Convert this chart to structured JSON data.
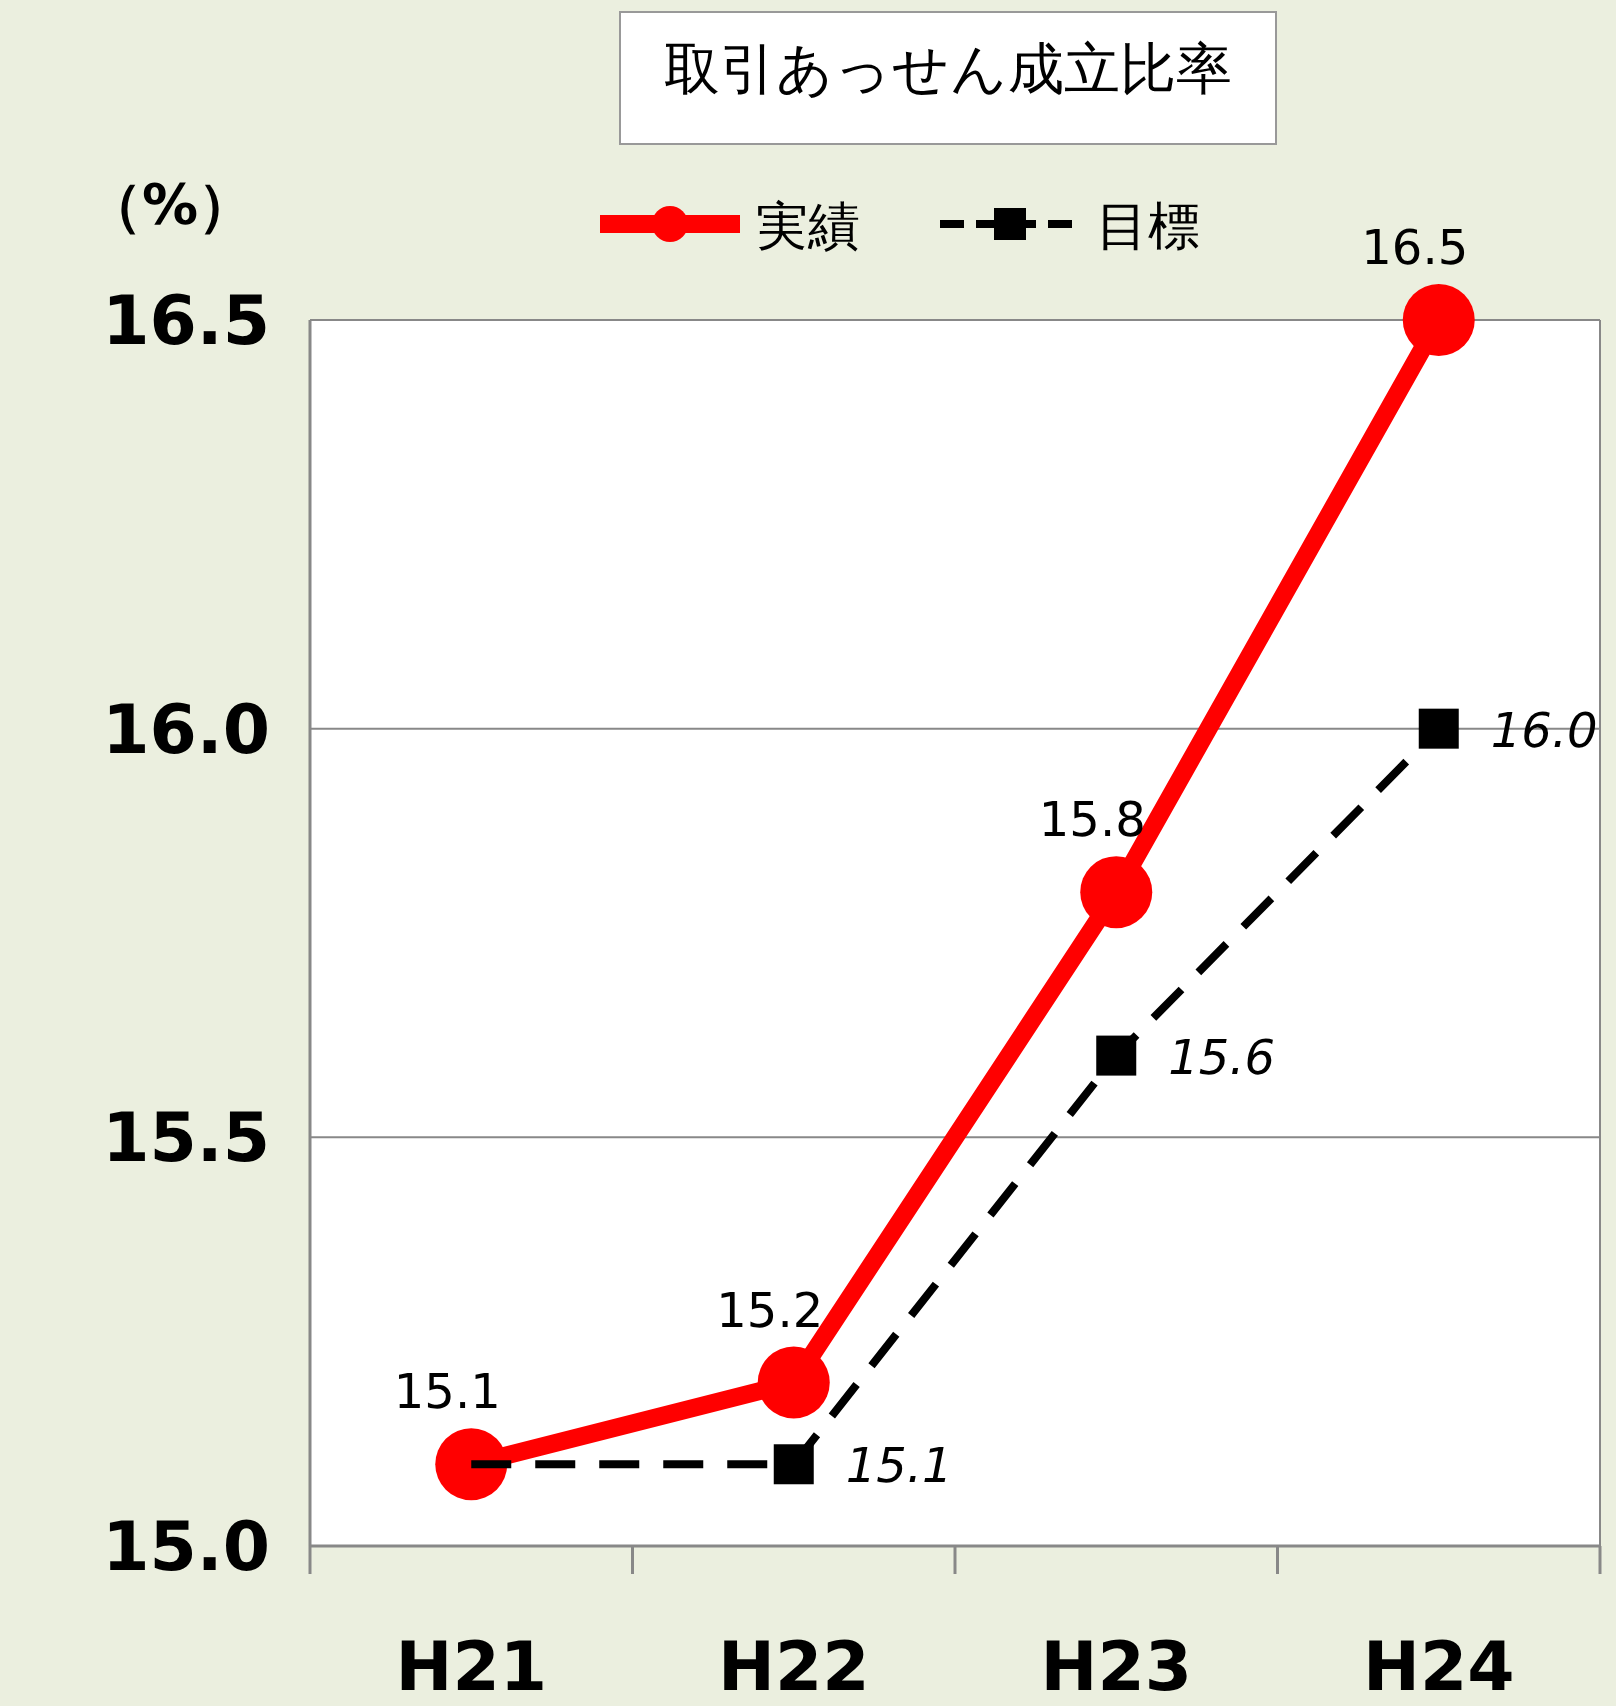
{
  "chart_data": {
    "type": "line",
    "title": "取引あっせん成立比率",
    "ylabel": "（%）",
    "categories": [
      "H21",
      "H22",
      "H23",
      "H24"
    ],
    "series": [
      {
        "name": "実績",
        "color": "#ff0000",
        "values": [
          15.1,
          15.2,
          15.8,
          16.5
        ],
        "marker": "circle",
        "line_style": "solid",
        "value_labels": [
          "15.1",
          "15.2",
          "15.8",
          "16.5"
        ]
      },
      {
        "name": "目標",
        "color": "#000000",
        "values": [
          15.1,
          15.1,
          15.6,
          16.0
        ],
        "marker": "square",
        "line_style": "dashed",
        "value_labels": [
          null,
          "15.1",
          "15.6",
          "16.0"
        ]
      }
    ],
    "ylim": [
      15.0,
      16.5
    ],
    "yticks": [
      {
        "value": 15.0,
        "label": "15.0"
      },
      {
        "value": 15.5,
        "label": "15.5"
      },
      {
        "value": 16.0,
        "label": "16.0"
      },
      {
        "value": 16.5,
        "label": "16.5"
      }
    ],
    "grid": "y",
    "legend": "top"
  }
}
